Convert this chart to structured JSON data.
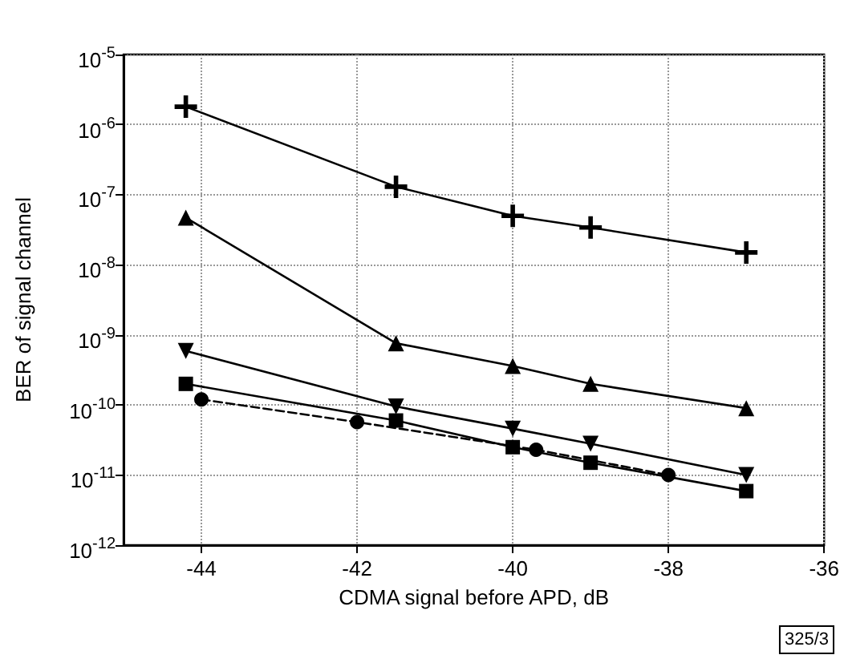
{
  "chart_data": {
    "type": "line",
    "xlabel": "CDMA signal before APD, dB",
    "ylabel": "BER of signal channel",
    "xlim": [
      -45,
      -36
    ],
    "xticks": [
      -44,
      -42,
      -40,
      -38,
      -36
    ],
    "ylim": [
      1e-12,
      1e-05
    ],
    "log": true,
    "grid": true,
    "yticks": [
      {
        "value": 1e-12,
        "label": "10$^{-12}$"
      },
      {
        "value": 1e-11,
        "label": "10$^{-11}$"
      },
      {
        "value": 1e-10,
        "label": "10$^{-10}$"
      },
      {
        "value": 1e-09,
        "label": "10$^{-9}$"
      },
      {
        "value": 1e-08,
        "label": "10$^{-8}$"
      },
      {
        "value": 1e-07,
        "label": "10$^{-7}$"
      },
      {
        "value": 1e-06,
        "label": "10$^{-6}$"
      },
      {
        "value": 1e-05,
        "label": "10$^{-5}$"
      }
    ],
    "series": [
      {
        "color": "#000000",
        "marker": "cross",
        "line_style": "solid",
        "x": [
          -44.2,
          -41.5,
          -40,
          -39,
          -37
        ],
        "values": [
          1.8e-06,
          1.3e-07,
          5e-08,
          3.4e-08,
          1.5e-08
        ]
      },
      {
        "color": "#000000",
        "marker": "triangle",
        "line_style": "solid",
        "x": [
          -44.2,
          -41.5,
          -40,
          -39,
          -37
        ],
        "values": [
          4.7e-08,
          7.6e-10,
          3.6e-10,
          2e-10,
          9e-11
        ]
      },
      {
        "color": "#000000",
        "marker": "triangle-down",
        "line_style": "solid",
        "x": [
          -44.2,
          -41.5,
          -40,
          -39,
          -37
        ],
        "values": [
          5.9e-10,
          9.5e-11,
          4.6e-11,
          2.8e-11,
          1e-11
        ]
      },
      {
        "color": "#000000",
        "marker": "square",
        "line_style": "solid",
        "x": [
          -44.2,
          -41.5,
          -40,
          -39,
          -37
        ],
        "values": [
          2e-10,
          6e-11,
          2.5e-11,
          1.5e-11,
          5.9e-12
        ]
      },
      {
        "color": "#000000",
        "marker": "circle",
        "line_style": "dashed",
        "x": [
          -44,
          -42,
          -39.7,
          -38
        ],
        "values": [
          1.2e-10,
          5.7e-11,
          2.3e-11,
          1e-11
        ]
      }
    ],
    "annotations": [
      "325/3"
    ]
  }
}
